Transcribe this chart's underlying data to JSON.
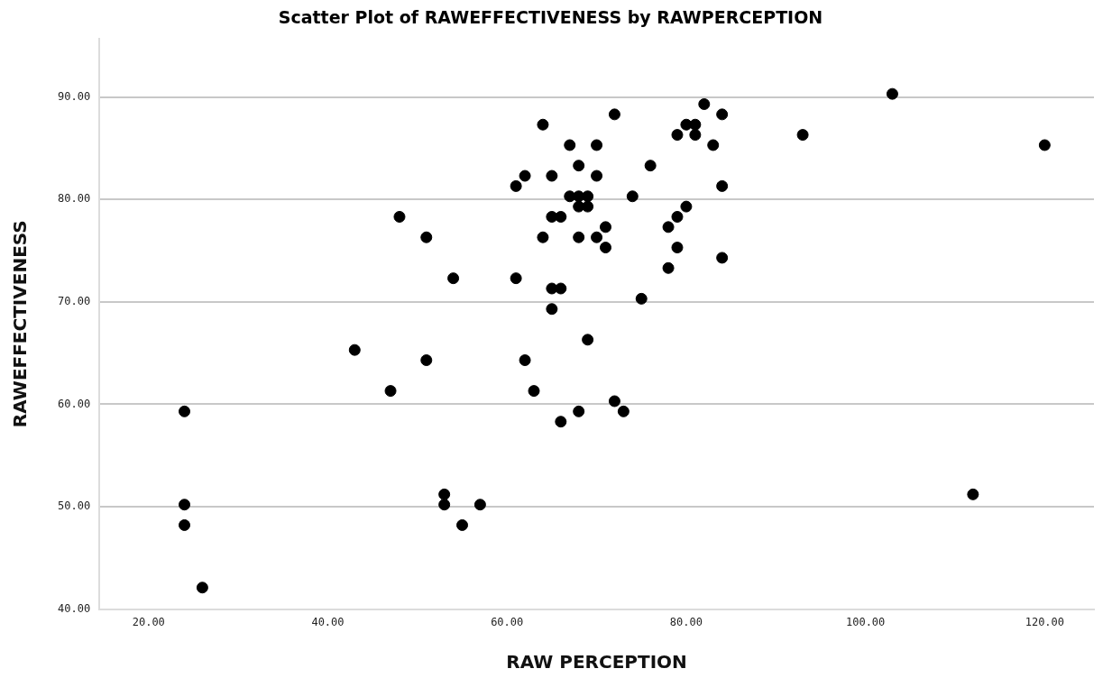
{
  "chart_data": {
    "type": "scatter",
    "title": "Scatter Plot of RAWEFFECTIVENESS by RAWPERCEPTION",
    "xlabel": "RAW PERCEPTION",
    "ylabel": "RAWEFFECTIVENESS",
    "xlim": [
      14.5,
      125.5
    ],
    "xticks": [
      {
        "value": 20,
        "label": "20.00"
      },
      {
        "value": 40,
        "label": "40.00"
      },
      {
        "value": 60,
        "label": "60.00"
      },
      {
        "value": 80,
        "label": "80.00"
      },
      {
        "value": 100,
        "label": "100.00"
      },
      {
        "value": 120,
        "label": "120.00"
      }
    ],
    "ylim": [
      40,
      95.7
    ],
    "yticks": [
      {
        "value": 40,
        "label": "40.00"
      },
      {
        "value": 50,
        "label": "50.00"
      },
      {
        "value": 60,
        "label": "60.00"
      },
      {
        "value": 70,
        "label": "70.00"
      },
      {
        "value": 80,
        "label": "80.00"
      },
      {
        "value": 90,
        "label": "90.00"
      }
    ],
    "grid": "y",
    "legend": false,
    "marker": "circle",
    "series": [
      {
        "color": "#000000",
        "x": [
          103,
          82,
          72,
          84,
          64,
          80,
          81,
          79,
          81,
          93,
          67,
          70,
          83,
          120,
          68,
          76,
          62,
          65,
          70,
          61,
          84,
          67,
          68,
          69,
          74,
          68,
          69,
          80,
          48,
          65,
          66,
          79,
          71,
          78,
          51,
          64,
          68,
          70,
          71,
          79,
          84,
          78,
          54,
          61,
          65,
          66,
          75,
          65,
          69,
          43,
          51,
          62,
          47,
          63,
          72,
          24,
          68,
          73,
          66,
          53,
          112,
          24,
          53,
          57,
          24,
          55,
          26
        ],
        "values": [
          90.3,
          89.3,
          88.3,
          88.3,
          87.3,
          87.3,
          87.3,
          86.3,
          86.3,
          86.3,
          85.3,
          85.3,
          85.3,
          85.3,
          83.3,
          83.3,
          82.3,
          82.3,
          82.3,
          81.3,
          81.3,
          80.3,
          80.3,
          80.3,
          80.3,
          79.3,
          79.3,
          79.3,
          78.3,
          78.3,
          78.3,
          78.3,
          77.3,
          77.3,
          76.3,
          76.3,
          76.3,
          76.3,
          75.3,
          75.3,
          74.3,
          73.3,
          72.3,
          72.3,
          71.3,
          71.3,
          70.3,
          69.3,
          66.3,
          65.3,
          64.3,
          64.3,
          61.3,
          61.3,
          60.3,
          59.3,
          59.3,
          59.3,
          58.3,
          51.2,
          51.2,
          50.2,
          50.2,
          50.2,
          48.2,
          48.2,
          42.1
        ]
      }
    ]
  }
}
